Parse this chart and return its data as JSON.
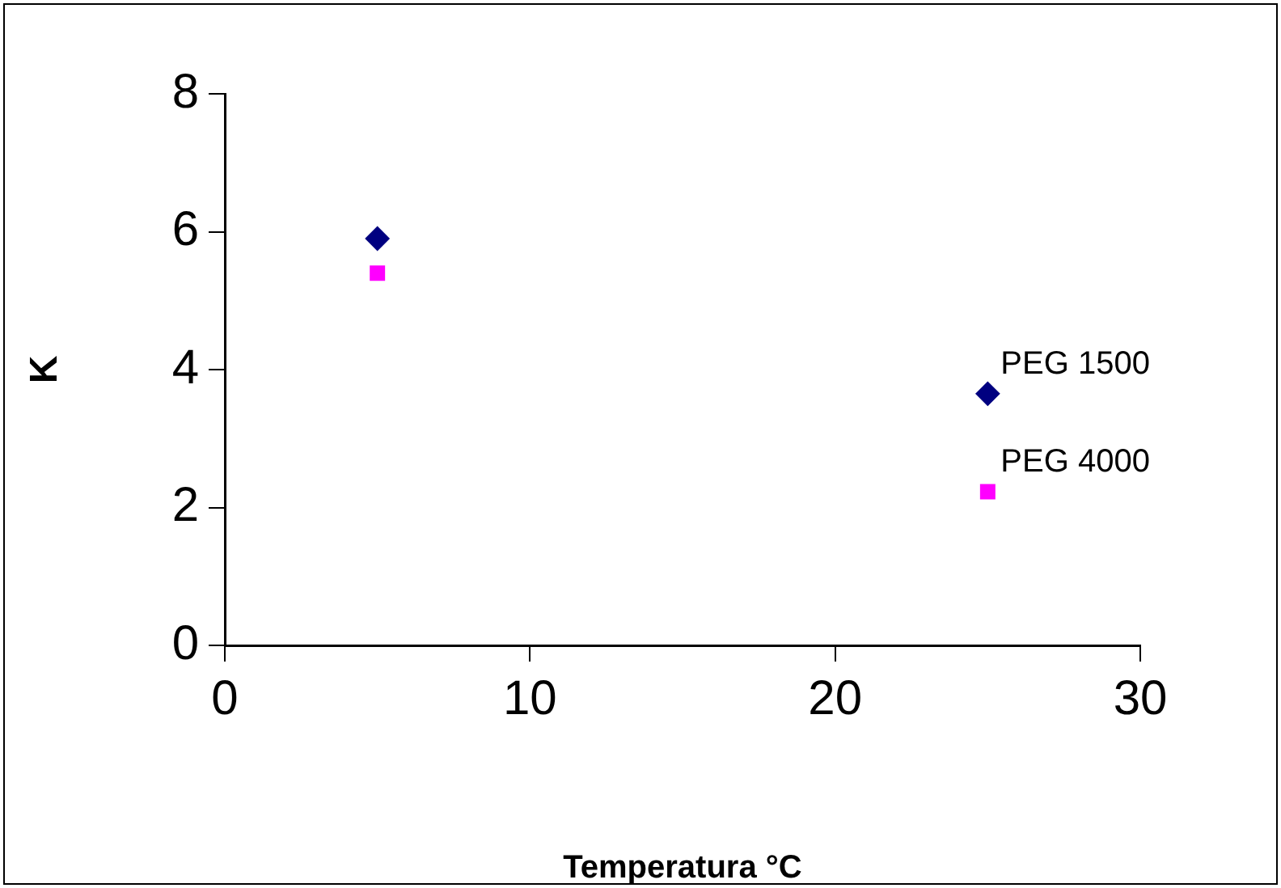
{
  "chart_data": {
    "type": "scatter",
    "xlabel": "Temperatura °C",
    "ylabel": "K",
    "x": [
      5,
      25
    ],
    "xlim": [
      0,
      30
    ],
    "xticks": [
      0,
      10,
      20,
      30
    ],
    "ylim": [
      0,
      8
    ],
    "yticks": [
      0,
      2,
      4,
      6,
      8
    ],
    "grid": false,
    "legend": false,
    "series": [
      {
        "name": "PEG 1500",
        "color": "#000080",
        "marker": "diamond",
        "values": [
          5.9,
          3.65
        ]
      },
      {
        "name": "PEG 4000",
        "color": "#ff00ff",
        "marker": "square",
        "values": [
          5.4,
          2.23
        ]
      }
    ]
  }
}
